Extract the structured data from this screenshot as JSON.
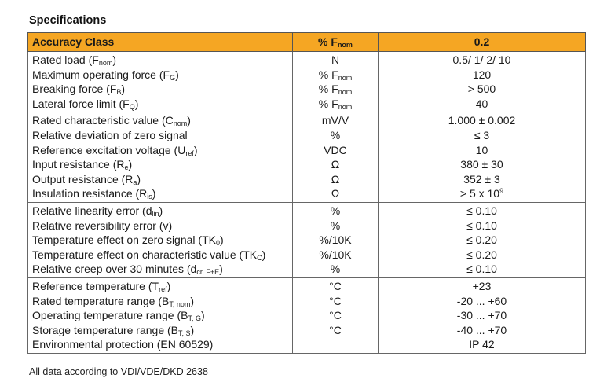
{
  "title": "Specifications",
  "header": {
    "parameter": "Accuracy Class",
    "unit_main": "% F",
    "unit_sub": "nom",
    "value": "0.2"
  },
  "rows": [
    {
      "name": "Rated load (F",
      "name_sub": "nom",
      "name_end": ")",
      "unit": "N",
      "unit_sub": "",
      "value": "0.5/ 1/ 2/ 10",
      "value_sup": "",
      "first": true
    },
    {
      "name": "Maximum operating force (F",
      "name_sub": "G",
      "name_end": ")",
      "unit": "% F",
      "unit_sub": "nom",
      "value": "120",
      "value_sup": ""
    },
    {
      "name": "Breaking force (F",
      "name_sub": "B",
      "name_end": ")",
      "unit": "% F",
      "unit_sub": "nom",
      "value": "> 500",
      "value_sup": ""
    },
    {
      "name": "Lateral force limit (F",
      "name_sub": "Q",
      "name_end": ")",
      "unit": "% F",
      "unit_sub": "nom",
      "value": "40",
      "value_sup": "",
      "last": true
    },
    {
      "name": "Rated characteristic value (C",
      "name_sub": "nom",
      "name_end": ")",
      "unit": "mV/V",
      "unit_sub": "",
      "value": "1.000 ± 0.002",
      "value_sup": "",
      "first": true
    },
    {
      "name": "Relative deviation of zero signal",
      "name_sub": "",
      "name_end": "",
      "unit": "%",
      "unit_sub": "",
      "value": "≤ 3",
      "value_sup": ""
    },
    {
      "name": "Reference excitation voltage (U",
      "name_sub": "ref",
      "name_end": ")",
      "unit": "VDC",
      "unit_sub": "",
      "value": "10",
      "value_sup": ""
    },
    {
      "name": "Input resistance (R",
      "name_sub": "e",
      "name_end": ")",
      "unit": "Ω",
      "unit_sub": "",
      "value": "380 ± 30",
      "value_sup": ""
    },
    {
      "name": "Output resistance (R",
      "name_sub": "a",
      "name_end": ")",
      "unit": "Ω",
      "unit_sub": "",
      "value": "352 ± 3",
      "value_sup": ""
    },
    {
      "name": "Insulation resistance (R",
      "name_sub": "is",
      "name_end": ")",
      "unit": "Ω",
      "unit_sub": "",
      "value": "> 5 x 10",
      "value_sup": "9",
      "last": true
    },
    {
      "name": "Relative linearity error (d",
      "name_sub": "lin",
      "name_end": ")",
      "unit": "%",
      "unit_sub": "",
      "value": "≤ 0.10",
      "value_sup": "",
      "first": true
    },
    {
      "name": "Relative reversibility error (v)",
      "name_sub": "",
      "name_end": "",
      "unit": "%",
      "unit_sub": "",
      "value": "≤ 0.10",
      "value_sup": ""
    },
    {
      "name": "Temperature effect on zero signal (TK",
      "name_sub": "0",
      "name_end": ")",
      "unit": "%/10K",
      "unit_sub": "",
      "value": "≤ 0.20",
      "value_sup": ""
    },
    {
      "name": "Temperature effect on characteristic value (TK",
      "name_sub": "C",
      "name_end": ")",
      "unit": "%/10K",
      "unit_sub": "",
      "value": "≤ 0.20",
      "value_sup": ""
    },
    {
      "name": "Relative creep over 30 minutes (d",
      "name_sub": "cr, F+E",
      "name_end": ")",
      "unit": "%",
      "unit_sub": "",
      "value": "≤ 0.10",
      "value_sup": "",
      "last": true
    },
    {
      "name": "Reference temperature (T",
      "name_sub": "ref",
      "name_end": ")",
      "unit": "°C",
      "unit_sub": "",
      "value": "+23",
      "value_sup": "",
      "first": true
    },
    {
      "name": "Rated temperature range (B",
      "name_sub": "T, nom",
      "name_end": ")",
      "unit": "°C",
      "unit_sub": "",
      "value": "-20 ... +60",
      "value_sup": ""
    },
    {
      "name": "Operating temperature range (B",
      "name_sub": "T, G",
      "name_end": ")",
      "unit": "°C",
      "unit_sub": "",
      "value": "-30 ... +70",
      "value_sup": ""
    },
    {
      "name": "Storage temperature range (B",
      "name_sub": "T, S",
      "name_end": ")",
      "unit": "°C",
      "unit_sub": "",
      "value": "-40 ... +70",
      "value_sup": ""
    },
    {
      "name": "Environmental protection (EN 60529)",
      "name_sub": "",
      "name_end": "",
      "unit": "",
      "unit_sub": "",
      "value": "IP 42",
      "value_sup": "",
      "last": true
    }
  ],
  "footnote": "All data according to VDI/VDE/DKD 2638"
}
